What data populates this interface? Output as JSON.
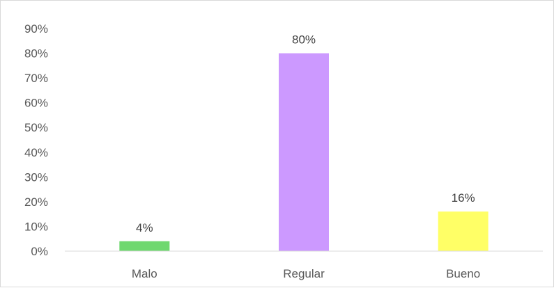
{
  "chart_data": {
    "type": "bar",
    "title": "",
    "xlabel": "",
    "ylabel": "",
    "categories": [
      "Malo",
      "Regular",
      "Bueno"
    ],
    "values": [
      4,
      80,
      16
    ],
    "data_labels": [
      "4%",
      "80%",
      "16%"
    ],
    "colors": [
      "#6fd86f",
      "#cc99ff",
      "#ffff66"
    ],
    "ylim": [
      0,
      90
    ],
    "yticks": [
      0,
      10,
      20,
      30,
      40,
      50,
      60,
      70,
      80,
      90
    ],
    "ytick_labels": [
      "0%",
      "10%",
      "20%",
      "30%",
      "40%",
      "50%",
      "60%",
      "70%",
      "80%",
      "90%"
    ],
    "grid": false,
    "legend": "none"
  }
}
